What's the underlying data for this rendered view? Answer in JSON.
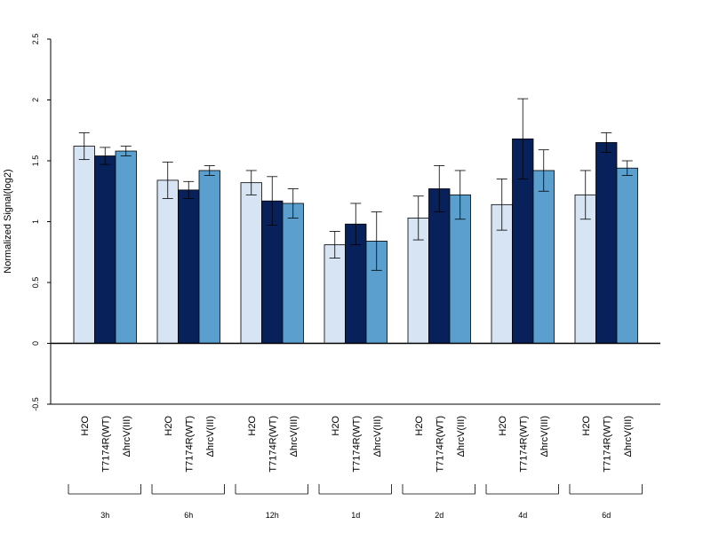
{
  "chart_data": {
    "type": "bar",
    "xlabel": "",
    "ylabel": "Normalized Signal(log2)",
    "ylim": [
      -0.5,
      2.5
    ],
    "yticks": [
      "-0.5",
      "0",
      "0.5",
      "1",
      "1.5",
      "2",
      "2.5"
    ],
    "series_names": [
      "H2O",
      "T7174R(WT)",
      "ΔhrcV(III)"
    ],
    "colors": [
      "#d6e4f3",
      "#08215a",
      "#5a9fcd"
    ],
    "groups": [
      {
        "label": "3h",
        "values": [
          1.62,
          1.54,
          1.58
        ],
        "errors": [
          0.11,
          0.07,
          0.04
        ]
      },
      {
        "label": "6h",
        "values": [
          1.34,
          1.26,
          1.42
        ],
        "errors": [
          0.15,
          0.07,
          0.04
        ]
      },
      {
        "label": "12h",
        "values": [
          1.32,
          1.17,
          1.15
        ],
        "errors": [
          0.1,
          0.2,
          0.12
        ]
      },
      {
        "label": "1d",
        "values": [
          0.81,
          0.98,
          0.84
        ],
        "errors": [
          0.11,
          0.17,
          0.24
        ]
      },
      {
        "label": "2d",
        "values": [
          1.03,
          1.27,
          1.22
        ],
        "errors": [
          0.18,
          0.19,
          0.2
        ]
      },
      {
        "label": "4d",
        "values": [
          1.14,
          1.68,
          1.42
        ],
        "errors": [
          0.21,
          0.33,
          0.17
        ]
      },
      {
        "label": "6d",
        "values": [
          1.22,
          1.65,
          1.44
        ],
        "errors": [
          0.2,
          0.08,
          0.06
        ]
      }
    ]
  }
}
